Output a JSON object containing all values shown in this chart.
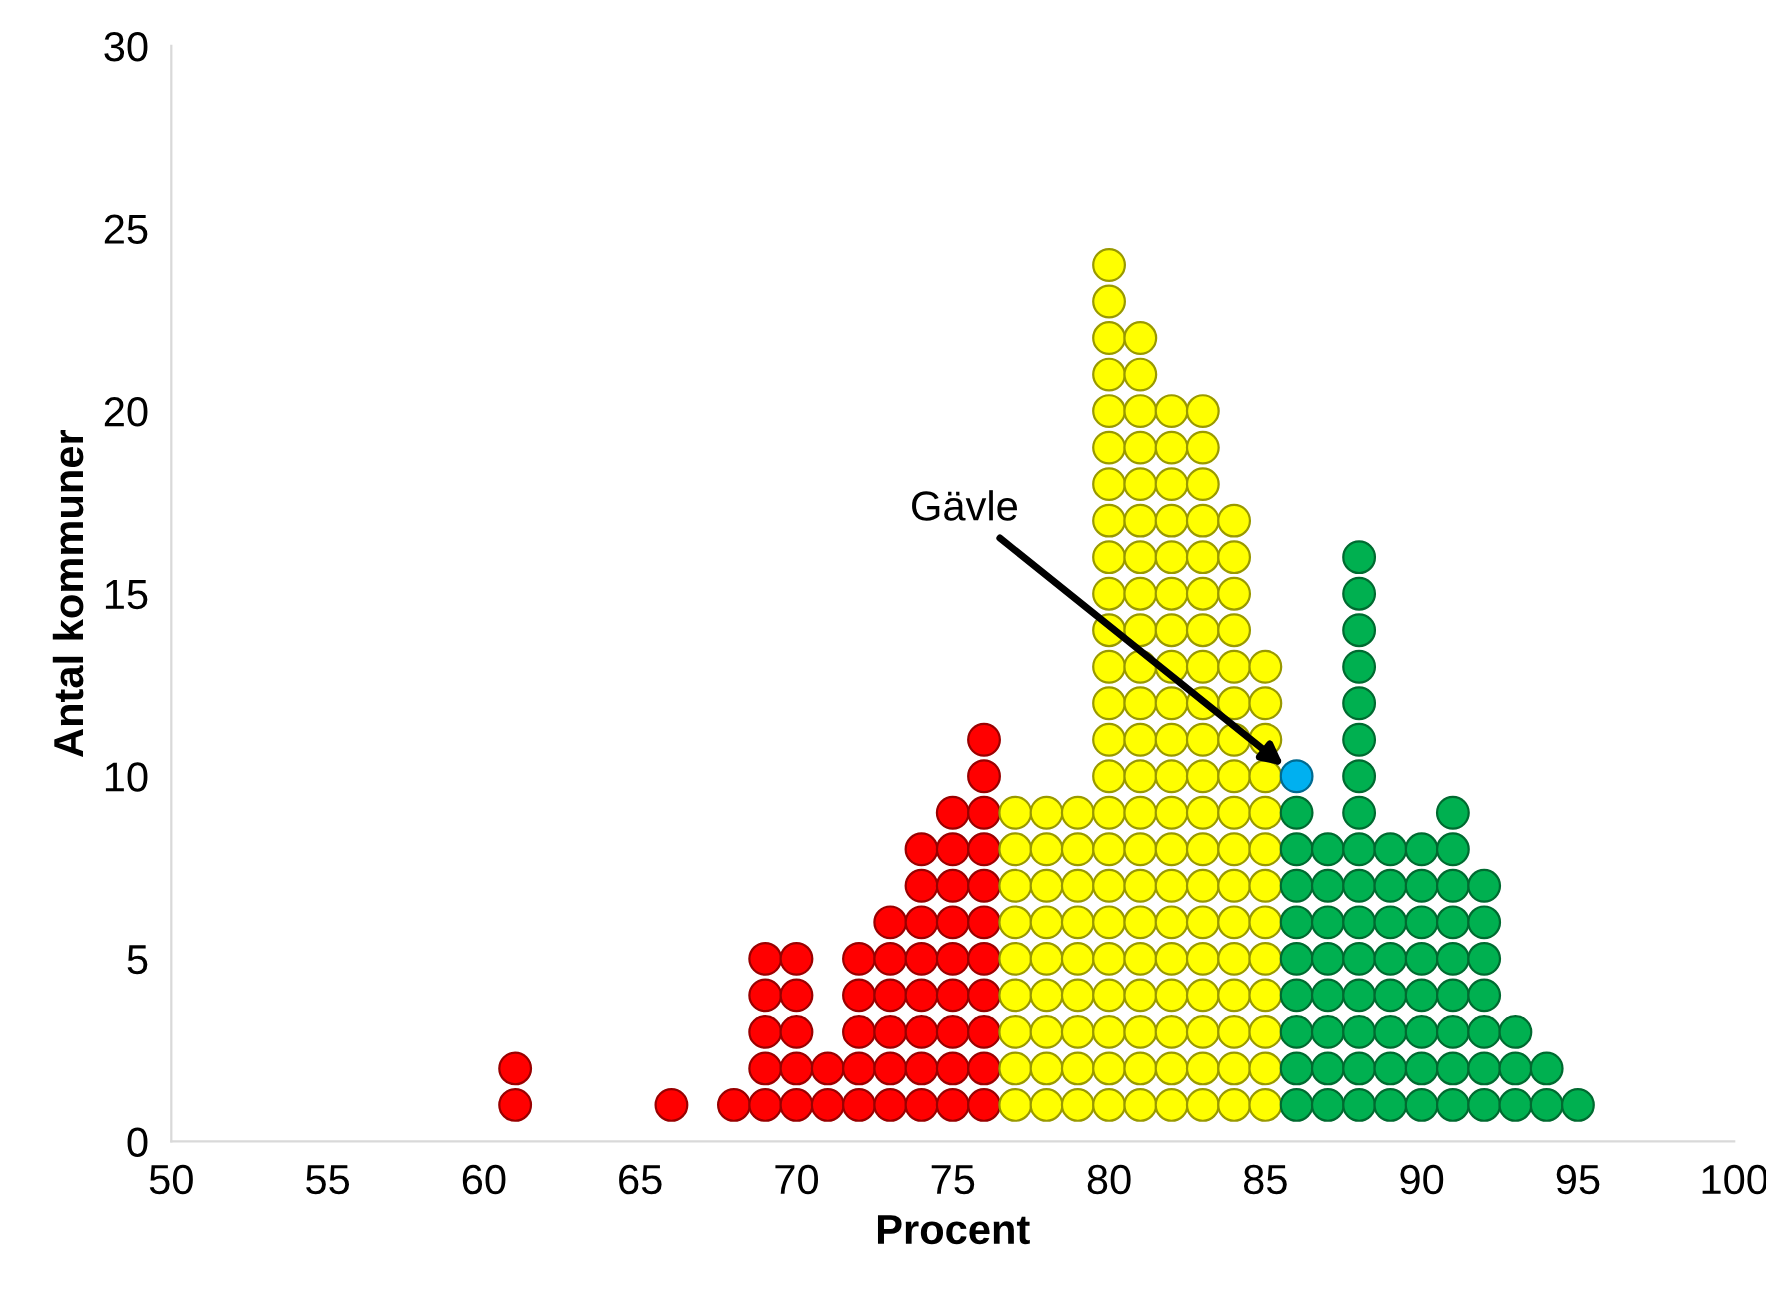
{
  "chart_data": {
    "type": "scatter",
    "xlabel": "Procent",
    "ylabel": "Antal kommuner",
    "xlim": [
      50,
      100
    ],
    "xticks": [
      50,
      55,
      60,
      65,
      70,
      75,
      80,
      85,
      90,
      95,
      100
    ],
    "ylim": [
      0,
      30
    ],
    "yticks": [
      0,
      5,
      10,
      15,
      20,
      25,
      30
    ],
    "grid": false,
    "marker": "circle",
    "series": [
      {
        "color": "#ff0000",
        "x": [
          61,
          61,
          66,
          68,
          69,
          69,
          69,
          69,
          69,
          70,
          70,
          70,
          70,
          70,
          71,
          71,
          72,
          72,
          72,
          72,
          72,
          73,
          73,
          73,
          73,
          73,
          73,
          74,
          74,
          74,
          74,
          74,
          74,
          74,
          74,
          75,
          75,
          75,
          75,
          75,
          75,
          75,
          75,
          75,
          76,
          76,
          76,
          76,
          76,
          76,
          76,
          76,
          76,
          76,
          76
        ],
        "values": [
          1,
          2,
          1,
          1,
          1,
          2,
          3,
          4,
          5,
          1,
          2,
          3,
          4,
          5,
          1,
          2,
          1,
          2,
          3,
          4,
          5,
          1,
          2,
          3,
          4,
          5,
          6,
          1,
          2,
          3,
          4,
          5,
          6,
          7,
          8,
          1,
          2,
          3,
          4,
          5,
          6,
          7,
          8,
          9,
          1,
          2,
          3,
          4,
          5,
          6,
          7,
          8,
          9,
          10,
          11
        ]
      },
      {
        "color": "#ffff00",
        "x": [
          77,
          77,
          77,
          77,
          77,
          77,
          77,
          77,
          77,
          78,
          78,
          78,
          78,
          78,
          78,
          78,
          78,
          78,
          79,
          79,
          79,
          79,
          79,
          79,
          79,
          79,
          79,
          80,
          80,
          80,
          80,
          80,
          80,
          80,
          80,
          80,
          80,
          80,
          80,
          80,
          80,
          80,
          80,
          80,
          80,
          80,
          80,
          80,
          80,
          80,
          80,
          81,
          81,
          81,
          81,
          81,
          81,
          81,
          81,
          81,
          81,
          81,
          81,
          81,
          81,
          81,
          81,
          81,
          81,
          81,
          81,
          81,
          81,
          82,
          82,
          82,
          82,
          82,
          82,
          82,
          82,
          82,
          82,
          82,
          82,
          82,
          82,
          82,
          82,
          82,
          82,
          82,
          82,
          83,
          83,
          83,
          83,
          83,
          83,
          83,
          83,
          83,
          83,
          83,
          83,
          83,
          83,
          83,
          83,
          83,
          83,
          83,
          83,
          84,
          84,
          84,
          84,
          84,
          84,
          84,
          84,
          84,
          84,
          84,
          84,
          84,
          84,
          84,
          84,
          84,
          85,
          85,
          85,
          85,
          85,
          85,
          85,
          85,
          85,
          85,
          85,
          85,
          85
        ],
        "values": [
          1,
          2,
          3,
          4,
          5,
          6,
          7,
          8,
          9,
          1,
          2,
          3,
          4,
          5,
          6,
          7,
          8,
          9,
          1,
          2,
          3,
          4,
          5,
          6,
          7,
          8,
          9,
          1,
          2,
          3,
          4,
          5,
          6,
          7,
          8,
          9,
          10,
          11,
          12,
          13,
          14,
          15,
          16,
          17,
          18,
          19,
          20,
          21,
          22,
          23,
          24,
          1,
          2,
          3,
          4,
          5,
          6,
          7,
          8,
          9,
          10,
          11,
          12,
          13,
          14,
          15,
          16,
          17,
          18,
          19,
          20,
          21,
          22,
          1,
          2,
          3,
          4,
          5,
          6,
          7,
          8,
          9,
          10,
          11,
          12,
          13,
          14,
          15,
          16,
          17,
          18,
          19,
          20,
          1,
          2,
          3,
          4,
          5,
          6,
          7,
          8,
          9,
          10,
          11,
          12,
          13,
          14,
          15,
          16,
          17,
          18,
          19,
          20,
          1,
          2,
          3,
          4,
          5,
          6,
          7,
          8,
          9,
          10,
          11,
          12,
          13,
          14,
          15,
          16,
          17,
          1,
          2,
          3,
          4,
          5,
          6,
          7,
          8,
          9,
          10,
          11,
          12,
          13
        ]
      },
      {
        "color": "#00b050",
        "x": [
          86,
          86,
          86,
          86,
          86,
          86,
          86,
          86,
          86,
          87,
          87,
          87,
          87,
          87,
          87,
          87,
          87,
          88,
          88,
          88,
          88,
          88,
          88,
          88,
          88,
          88,
          88,
          88,
          88,
          88,
          88,
          88,
          88,
          89,
          89,
          89,
          89,
          89,
          89,
          89,
          89,
          90,
          90,
          90,
          90,
          90,
          90,
          90,
          90,
          91,
          91,
          91,
          91,
          91,
          91,
          91,
          91,
          91,
          92,
          92,
          92,
          92,
          92,
          92,
          92,
          93,
          93,
          93,
          94,
          94,
          95
        ],
        "values": [
          1,
          2,
          3,
          4,
          5,
          6,
          7,
          8,
          9,
          1,
          2,
          3,
          4,
          5,
          6,
          7,
          8,
          1,
          2,
          3,
          4,
          5,
          6,
          7,
          8,
          9,
          10,
          11,
          12,
          13,
          14,
          15,
          16,
          1,
          2,
          3,
          4,
          5,
          6,
          7,
          8,
          1,
          2,
          3,
          4,
          5,
          6,
          7,
          8,
          1,
          2,
          3,
          4,
          5,
          6,
          7,
          8,
          9,
          1,
          2,
          3,
          4,
          5,
          6,
          7,
          1,
          2,
          3,
          1,
          2,
          1
        ]
      },
      {
        "name": "Gävle",
        "color": "#00b0f0",
        "x": [
          86
        ],
        "values": [
          10
        ]
      }
    ]
  }
}
